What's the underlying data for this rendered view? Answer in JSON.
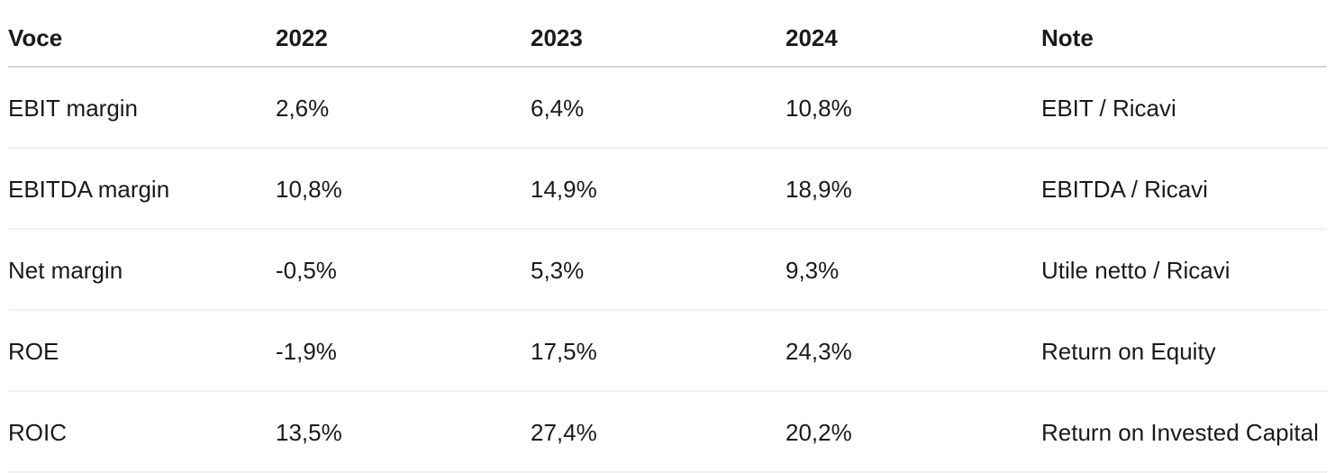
{
  "table": {
    "headers": {
      "voce": "Voce",
      "y2022": "2022",
      "y2023": "2023",
      "y2024": "2024",
      "note": "Note"
    },
    "rows": [
      {
        "voce": "EBIT margin",
        "y2022": "2,6%",
        "y2023": "6,4%",
        "y2024": "10,8%",
        "note": "EBIT / Ricavi"
      },
      {
        "voce": "EBITDA margin",
        "y2022": "10,8%",
        "y2023": "14,9%",
        "y2024": "18,9%",
        "note": "EBITDA / Ricavi"
      },
      {
        "voce": "Net margin",
        "y2022": "-0,5%",
        "y2023": "5,3%",
        "y2024": "9,3%",
        "note": "Utile netto / Ricavi"
      },
      {
        "voce": "ROE",
        "y2022": "-1,9%",
        "y2023": "17,5%",
        "y2024": "24,3%",
        "note": "Return on Equity"
      },
      {
        "voce": "ROIC",
        "y2022": "13,5%",
        "y2023": "27,4%",
        "y2024": "20,2%",
        "note": "Return on Invested Capital"
      }
    ]
  },
  "colors": {
    "text": "#1a1a1a",
    "header_divider": "#d6d6d6",
    "row_divider": "#f1f1f1",
    "background": "#ffffff"
  }
}
